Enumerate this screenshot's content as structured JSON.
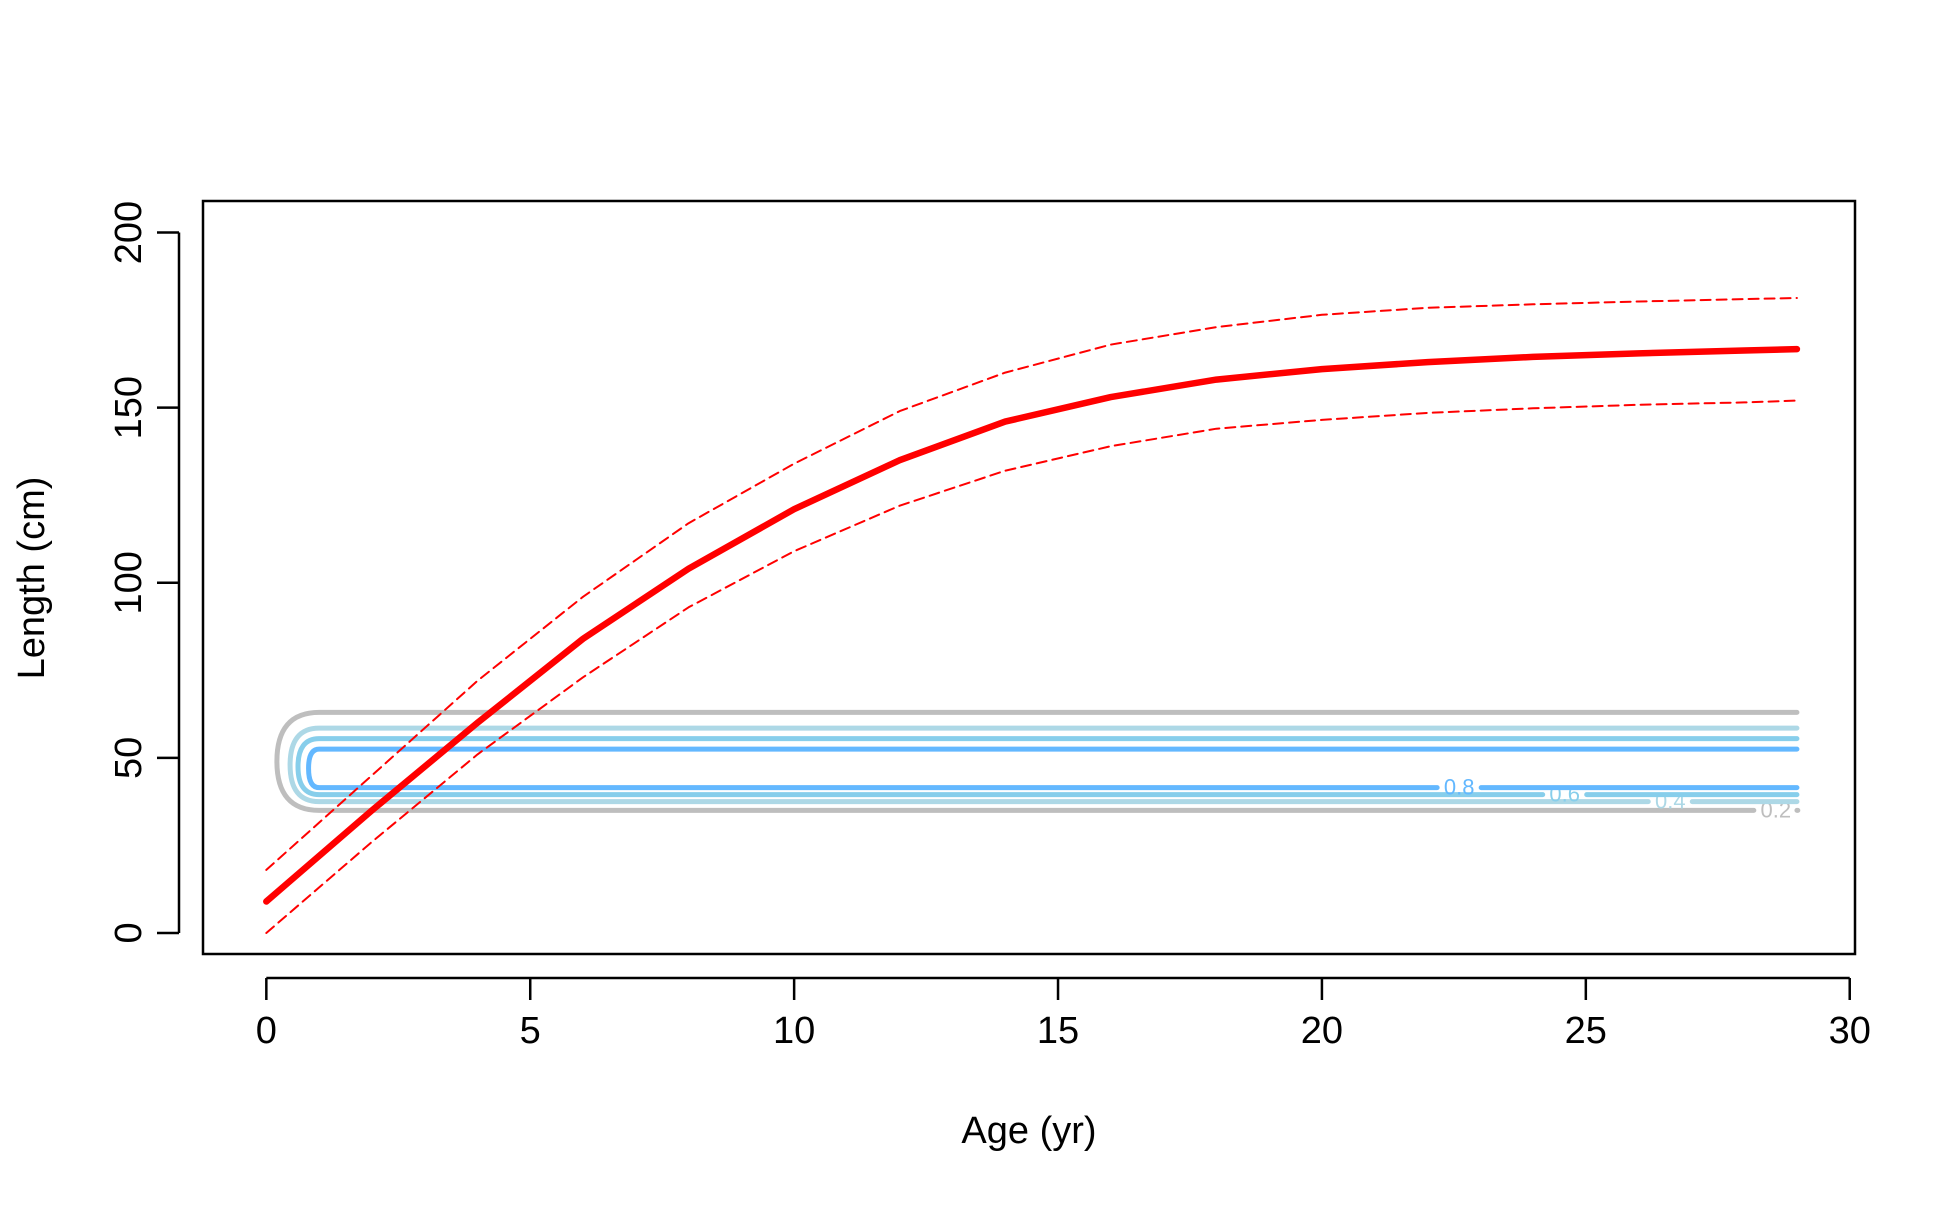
{
  "colors": {
    "growth_curve": "#ff0000",
    "contours": {
      "0.2": "#bebebe",
      "0.4": "#add8e6",
      "0.6": "#87ceeb",
      "0.8": "#63b8ff"
    },
    "axis": "#000000",
    "background": "#ffffff"
  },
  "chart_data": {
    "type": "line",
    "title": "",
    "xlabel": "Age (yr)",
    "ylabel": "Length (cm)",
    "xlim": [
      -1.2,
      30.1
    ],
    "ylim": [
      -6,
      209
    ],
    "x_ticks": [
      0,
      5,
      10,
      15,
      20,
      25,
      30
    ],
    "x_tick_labels": [
      "0",
      "5",
      "10",
      "15",
      "20",
      "25",
      "30"
    ],
    "y_ticks": [
      0,
      50,
      100,
      150,
      200
    ],
    "y_tick_labels": [
      "0",
      "50",
      "100",
      "150",
      "200"
    ],
    "grid": false,
    "legend": "none",
    "series": [
      {
        "style": "solid-thick",
        "x": [
          0,
          2,
          4,
          6,
          8,
          10,
          12,
          14,
          16,
          18,
          20,
          22,
          24,
          26,
          28,
          29
        ],
        "y": [
          9,
          35,
          60,
          84,
          104,
          121,
          135,
          146,
          153,
          158,
          161,
          163,
          164.5,
          165.5,
          166.3,
          166.7
        ]
      },
      {
        "style": "dashed",
        "x": [
          0,
          2,
          4,
          6,
          8,
          10,
          12,
          14,
          16,
          18,
          20,
          22,
          24,
          26,
          28,
          29
        ],
        "y": [
          18,
          45,
          72,
          96,
          117,
          134,
          149,
          160,
          168,
          173,
          176.5,
          178.5,
          179.5,
          180.3,
          181,
          181.3
        ]
      },
      {
        "style": "dashed",
        "x": [
          0,
          2,
          4,
          6,
          8,
          10,
          12,
          14,
          16,
          18,
          20,
          22,
          24,
          26,
          28,
          29
        ],
        "y": [
          0,
          26,
          51,
          73,
          93,
          109,
          122,
          132,
          139,
          144,
          146.5,
          148.5,
          149.8,
          150.8,
          151.5,
          152
        ]
      }
    ],
    "contours": [
      {
        "level": "0.2",
        "label": "0.2",
        "y_top": 63,
        "y_bottom": 35,
        "x_left": 0.2,
        "x_corner": 1.0,
        "x_right": 29,
        "label_x": 28.6
      },
      {
        "level": "0.4",
        "label": "0.4",
        "y_top": 58.5,
        "y_bottom": 37.5,
        "x_left": 0.45,
        "x_corner": 1.0,
        "x_right": 29,
        "label_x": 26.6
      },
      {
        "level": "0.6",
        "label": "0.6",
        "y_top": 55.5,
        "y_bottom": 39.5,
        "x_left": 0.6,
        "x_corner": 1.0,
        "x_right": 29,
        "label_x": 24.6
      },
      {
        "level": "0.8",
        "label": "0.8",
        "y_top": 52.5,
        "y_bottom": 41.5,
        "x_left": 0.8,
        "x_corner": 1.0,
        "x_right": 29,
        "label_x": 22.6
      }
    ]
  }
}
